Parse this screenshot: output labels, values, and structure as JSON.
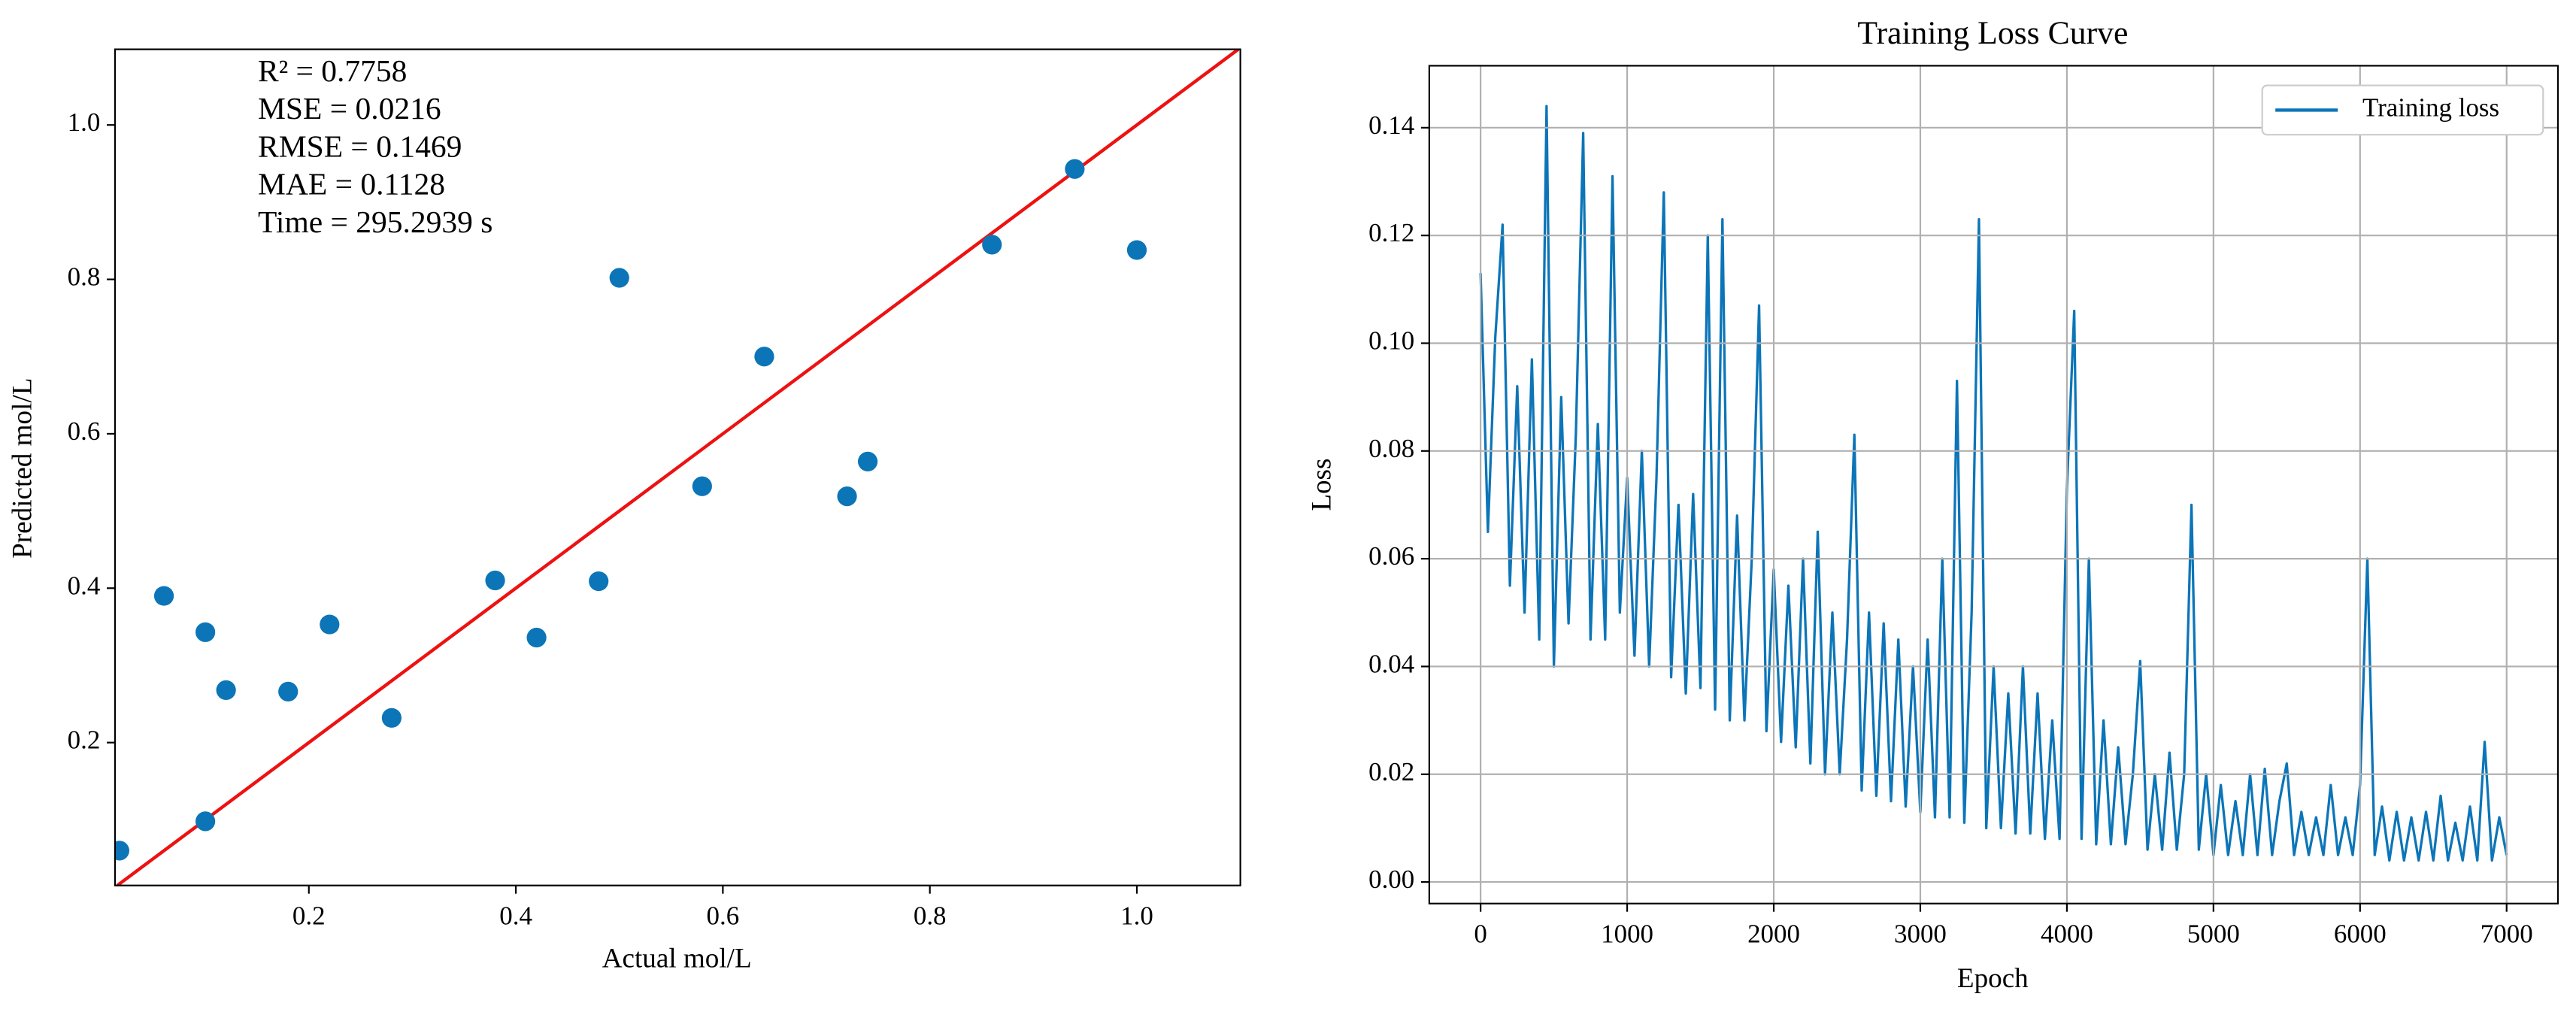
{
  "chart_data": [
    {
      "type": "scatter",
      "xlabel": "Actual mol/L",
      "ylabel": "Predicted mol/L",
      "annotations": [
        "R² = 0.7758",
        "MSE = 0.0216",
        "RMSE = 0.1469",
        "MAE = 0.1128",
        "Time = 295.2939 s"
      ],
      "x": [
        0.017,
        0.06,
        0.1,
        0.1,
        0.12,
        0.18,
        0.22,
        0.28,
        0.38,
        0.42,
        0.48,
        0.5,
        0.58,
        0.64,
        0.72,
        0.74,
        0.86,
        0.94,
        1.0
      ],
      "y": [
        0.06,
        0.39,
        0.343,
        0.098,
        0.268,
        0.266,
        0.353,
        0.232,
        0.41,
        0.336,
        0.409,
        0.802,
        0.532,
        0.7,
        0.519,
        0.564,
        0.845,
        0.943,
        0.838
      ],
      "color": "#0c75b8",
      "identity_line": true,
      "identity_color": "#ee1111",
      "xlim": [
        0.0127,
        1.1
      ],
      "ylim": [
        0.0149,
        1.098
      ],
      "xticks": [
        0.2,
        0.4,
        0.6,
        0.8,
        {
          "value": 1,
          "label": "1.0"
        }
      ],
      "yticks": [
        0.2,
        0.4,
        0.6,
        0.8,
        {
          "value": 1,
          "label": "1.0"
        }
      ],
      "grid": false
    },
    {
      "type": "line",
      "title": "Training Loss Curve",
      "xlabel": "Epoch",
      "ylabel": "Loss",
      "grid": true,
      "legend": "upper right",
      "x": [
        0,
        50,
        100,
        150,
        200,
        250,
        300,
        350,
        400,
        450,
        500,
        550,
        600,
        650,
        700,
        750,
        800,
        850,
        900,
        950,
        1000,
        1050,
        1100,
        1150,
        1200,
        1250,
        1300,
        1350,
        1400,
        1450,
        1500,
        1550,
        1600,
        1650,
        1700,
        1750,
        1800,
        1850,
        1900,
        1950,
        2000,
        2050,
        2100,
        2150,
        2200,
        2250,
        2300,
        2350,
        2400,
        2450,
        2500,
        2550,
        2600,
        2650,
        2700,
        2750,
        2800,
        2850,
        2900,
        2950,
        3000,
        3050,
        3100,
        3150,
        3200,
        3250,
        3300,
        3350,
        3400,
        3450,
        3500,
        3550,
        3600,
        3650,
        3700,
        3750,
        3800,
        3850,
        3900,
        3950,
        4000,
        4050,
        4100,
        4150,
        4200,
        4250,
        4300,
        4350,
        4400,
        4450,
        4500,
        4550,
        4600,
        4650,
        4700,
        4750,
        4800,
        4850,
        4900,
        4950,
        5000,
        5050,
        5100,
        5150,
        5200,
        5250,
        5300,
        5350,
        5400,
        5450,
        5500,
        5550,
        5600,
        5650,
        5700,
        5750,
        5800,
        5850,
        5900,
        5950,
        6000,
        6050,
        6100,
        6150,
        6200,
        6250,
        6300,
        6350,
        6400,
        6450,
        6500,
        6550,
        6600,
        6650,
        6700,
        6750,
        6800,
        6850,
        6900,
        6950,
        7000
      ],
      "series": [
        {
          "name": "Training loss",
          "color": "#0c75b8",
          "values": [
            0.113,
            0.065,
            0.101,
            0.122,
            0.055,
            0.092,
            0.05,
            0.097,
            0.045,
            0.144,
            0.04,
            0.09,
            0.048,
            0.083,
            0.139,
            0.045,
            0.085,
            0.045,
            0.131,
            0.05,
            0.075,
            0.042,
            0.08,
            0.04,
            0.075,
            0.128,
            0.038,
            0.07,
            0.035,
            0.072,
            0.036,
            0.12,
            0.032,
            0.123,
            0.03,
            0.068,
            0.03,
            0.06,
            0.107,
            0.028,
            0.058,
            0.026,
            0.055,
            0.025,
            0.06,
            0.022,
            0.065,
            0.02,
            0.05,
            0.02,
            0.045,
            0.083,
            0.017,
            0.05,
            0.016,
            0.048,
            0.015,
            0.045,
            0.014,
            0.04,
            0.013,
            0.045,
            0.012,
            0.06,
            0.012,
            0.093,
            0.011,
            0.05,
            0.123,
            0.01,
            0.04,
            0.01,
            0.035,
            0.009,
            0.04,
            0.009,
            0.035,
            0.008,
            0.03,
            0.008,
            0.073,
            0.106,
            0.008,
            0.06,
            0.007,
            0.03,
            0.007,
            0.025,
            0.007,
            0.02,
            0.041,
            0.006,
            0.02,
            0.006,
            0.024,
            0.006,
            0.02,
            0.07,
            0.006,
            0.02,
            0.005,
            0.018,
            0.005,
            0.015,
            0.005,
            0.02,
            0.005,
            0.021,
            0.005,
            0.015,
            0.022,
            0.005,
            0.013,
            0.005,
            0.012,
            0.005,
            0.018,
            0.005,
            0.012,
            0.005,
            0.018,
            0.06,
            0.005,
            0.014,
            0.004,
            0.013,
            0.004,
            0.012,
            0.004,
            0.013,
            0.004,
            0.016,
            0.004,
            0.011,
            0.004,
            0.014,
            0.004,
            0.026,
            0.004,
            0.012,
            0.005
          ]
        }
      ],
      "xlim": [
        -350,
        7350
      ],
      "ylim": [
        -0.004,
        0.1515
      ],
      "xticks": [
        0,
        1000,
        2000,
        3000,
        4000,
        5000,
        6000,
        7000
      ],
      "yticks": [
        {
          "value": 0,
          "label": "0.00"
        },
        {
          "value": 0.02,
          "label": "0.02"
        },
        {
          "value": 0.04,
          "label": "0.04"
        },
        {
          "value": 0.06,
          "label": "0.06"
        },
        {
          "value": 0.08,
          "label": "0.08"
        },
        {
          "value": 0.1,
          "label": "0.10"
        },
        {
          "value": 0.12,
          "label": "0.12"
        },
        {
          "value": 0.14,
          "label": "0.14"
        }
      ]
    }
  ]
}
